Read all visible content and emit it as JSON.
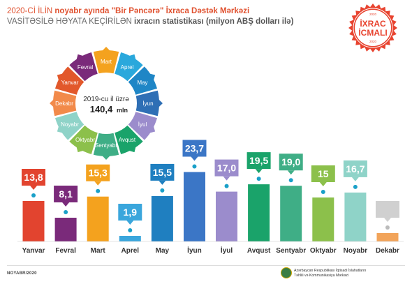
{
  "header": {
    "line1_prefix": "2020-Cİ İLİN ",
    "line1_bold": "noyabr ayında \"Bir Pəncərə\" İxraca Dəstək Mərkəzi",
    "line2_prefix": "VASİTƏSİLƏ HƏYATA KEÇİRİLƏN ",
    "line2_bold": "ixracın statistikası (milyon ABŞ dolları ilə)"
  },
  "badge": {
    "top": "2020",
    "word1": "İXRAC",
    "word2": "İCMALI",
    "bottom": "2020",
    "color": "#e8432f"
  },
  "wheel": {
    "center_line1": "2019-cu il üzrə",
    "center_value": "140,4",
    "center_unit": "mln",
    "segments": [
      {
        "label": "Mart",
        "color": "#f4a21e"
      },
      {
        "label": "Aprel",
        "color": "#2aa8dc"
      },
      {
        "label": "May",
        "color": "#1f86c6"
      },
      {
        "label": "İyun",
        "color": "#2f6fb5"
      },
      {
        "label": "İyul",
        "color": "#9b8ccc"
      },
      {
        "label": "Avqust",
        "color": "#1aa36a"
      },
      {
        "label": "Sentyabr",
        "color": "#3fae86"
      },
      {
        "label": "Oktyabr",
        "color": "#8cc04b"
      },
      {
        "label": "Noyabr",
        "color": "#8fd3c8"
      },
      {
        "label": "Dekabr",
        "color": "#f28a4a"
      },
      {
        "label": "Yanvar",
        "color": "#e2582b"
      },
      {
        "label": "Fevral",
        "color": "#7a2a7a"
      }
    ]
  },
  "chart_data": {
    "type": "bar",
    "title": "",
    "ylabel": "",
    "xlabel": "",
    "categories": [
      "Yanvar",
      "Fevral",
      "Mart",
      "Aprel",
      "May",
      "İyun",
      "İyul",
      "Avqust",
      "Sentyabr",
      "Oktyabr",
      "Noyabr",
      "Dekabr"
    ],
    "values": [
      13.8,
      8.1,
      15.3,
      1.9,
      15.5,
      23.7,
      17.0,
      19.5,
      19.0,
      15,
      16.7,
      null
    ],
    "value_labels": [
      "13,8",
      "8,1",
      "15,3",
      "1,9",
      "15,5",
      "23,7",
      "17,0",
      "19,5",
      "19,0",
      "15",
      "16,7",
      ""
    ],
    "colors": [
      "#e2442f",
      "#7a2a7a",
      "#f4a21e",
      "#3aa6dc",
      "#1f7fc0",
      "#3b76c6",
      "#9b8ccc",
      "#1aa36a",
      "#3fae86",
      "#8cc04b",
      "#8fd3c8",
      "#f2a45a"
    ],
    "ylim": [
      0,
      25
    ]
  },
  "footer": {
    "date": "NOYABR/2020",
    "org_line1": "Azərbaycan Respublikası İqtisadi İslahatların",
    "org_line2": "Təhlili və Kommunikasiya Mərkəzi"
  }
}
